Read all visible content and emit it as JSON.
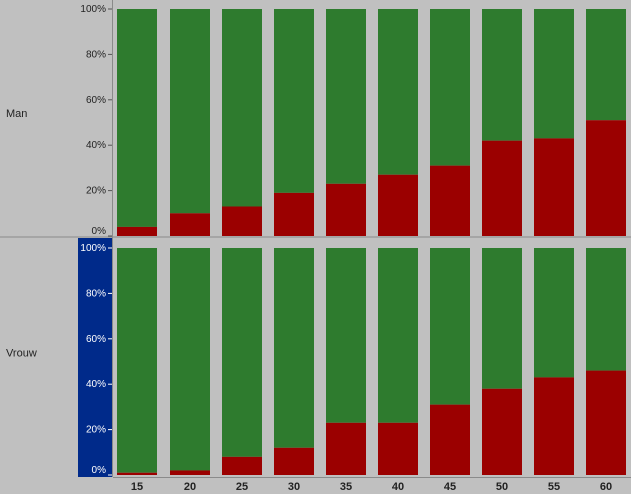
{
  "chart_data": {
    "type": "bar",
    "stacked": "percent",
    "categories": [
      "15",
      "20",
      "25",
      "30",
      "35",
      "40",
      "45",
      "50",
      "55",
      "60"
    ],
    "y_ticks": [
      "100%",
      "80%",
      "60%",
      "40%",
      "20%",
      "0%"
    ],
    "ylim": [
      0,
      100
    ],
    "colors": {
      "red": "#9b0000",
      "green": "#2e7b2e",
      "highlight": "#002a8a",
      "background": "#c0c0c0",
      "panel_bg": "#c3c3c3"
    },
    "panels": [
      {
        "label": "Man",
        "highlighted": false,
        "series": [
          {
            "name": "red",
            "values": [
              4,
              10,
              13,
              19,
              23,
              27,
              31,
              42,
              43,
              51
            ]
          },
          {
            "name": "green",
            "values": [
              96,
              90,
              87,
              81,
              77,
              73,
              69,
              58,
              57,
              49
            ]
          }
        ]
      },
      {
        "label": "Vrouw",
        "highlighted": true,
        "series": [
          {
            "name": "red",
            "values": [
              1,
              2,
              8,
              12,
              23,
              23,
              31,
              38,
              43,
              46
            ]
          },
          {
            "name": "green",
            "values": [
              99,
              98,
              92,
              88,
              77,
              77,
              69,
              62,
              57,
              54
            ]
          }
        ]
      }
    ]
  }
}
